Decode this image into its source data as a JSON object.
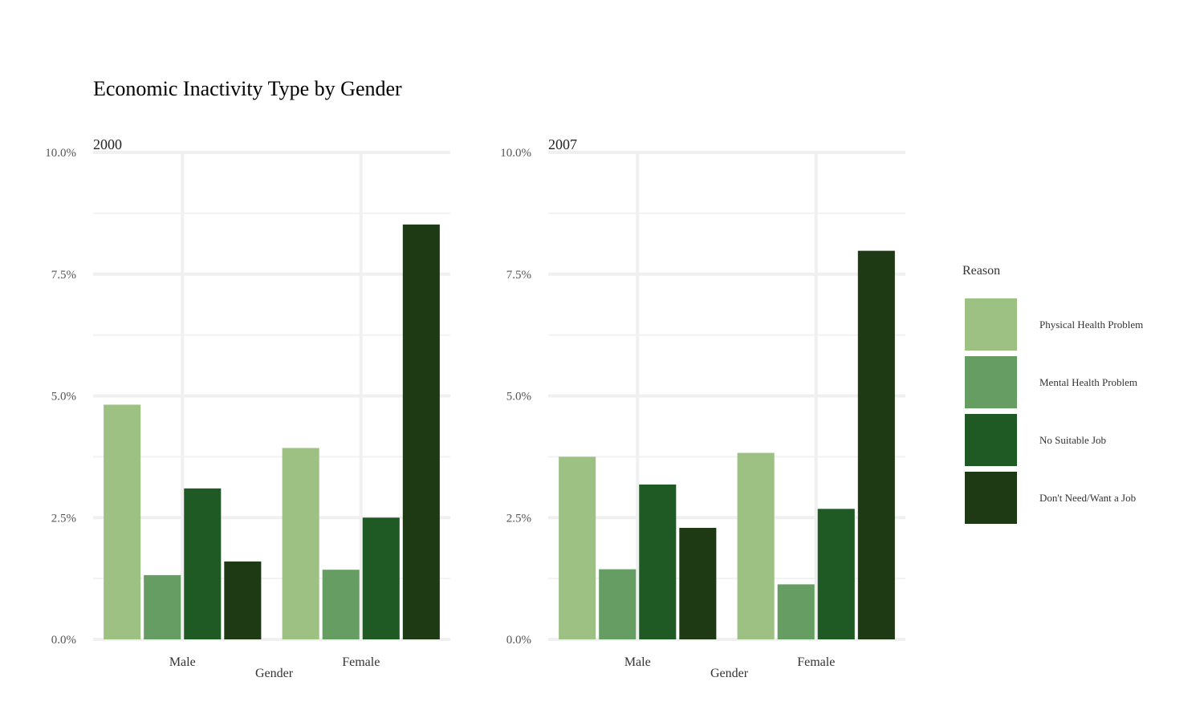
{
  "chart_data": {
    "type": "bar",
    "title": "Economic Inactivity Type by Gender",
    "xlabel": "Gender",
    "ylabel": "",
    "ylim": [
      0,
      0.1
    ],
    "y_ticks": [
      "0.0%",
      "2.5%",
      "5.0%",
      "7.5%",
      "10.0%"
    ],
    "y_tick_values": [
      0,
      0.025,
      0.05,
      0.075,
      0.1
    ],
    "categories": [
      "Male",
      "Female"
    ],
    "legend": {
      "title": "Reason",
      "placement": "right",
      "items": [
        {
          "label": "Physical Health Problem",
          "color": "#9dc183"
        },
        {
          "label": "Mental Health Problem",
          "color": "#669d62"
        },
        {
          "label": "No Suitable Job",
          "color": "#1f5a25"
        },
        {
          "label": "Don't Need/Want a Job",
          "color": "#1e3a15"
        }
      ]
    },
    "grid": true,
    "panels": [
      {
        "title": "2000",
        "series": [
          {
            "name": "Physical Health Problem",
            "values": [
              0.0482,
              0.0393
            ]
          },
          {
            "name": "Mental Health Problem",
            "values": [
              0.0132,
              0.0143
            ]
          },
          {
            "name": "No Suitable Job",
            "values": [
              0.031,
              0.025
            ]
          },
          {
            "name": "Don't Need/Want a Job",
            "values": [
              0.016,
              0.0852
            ]
          }
        ]
      },
      {
        "title": "2007",
        "series": [
          {
            "name": "Physical Health Problem",
            "values": [
              0.0375,
              0.0383
            ]
          },
          {
            "name": "Mental Health Problem",
            "values": [
              0.0144,
              0.0113
            ]
          },
          {
            "name": "No Suitable Job",
            "values": [
              0.0318,
              0.0268
            ]
          },
          {
            "name": "Don't Need/Want a Job",
            "values": [
              0.0229,
              0.0798
            ]
          }
        ]
      }
    ]
  }
}
